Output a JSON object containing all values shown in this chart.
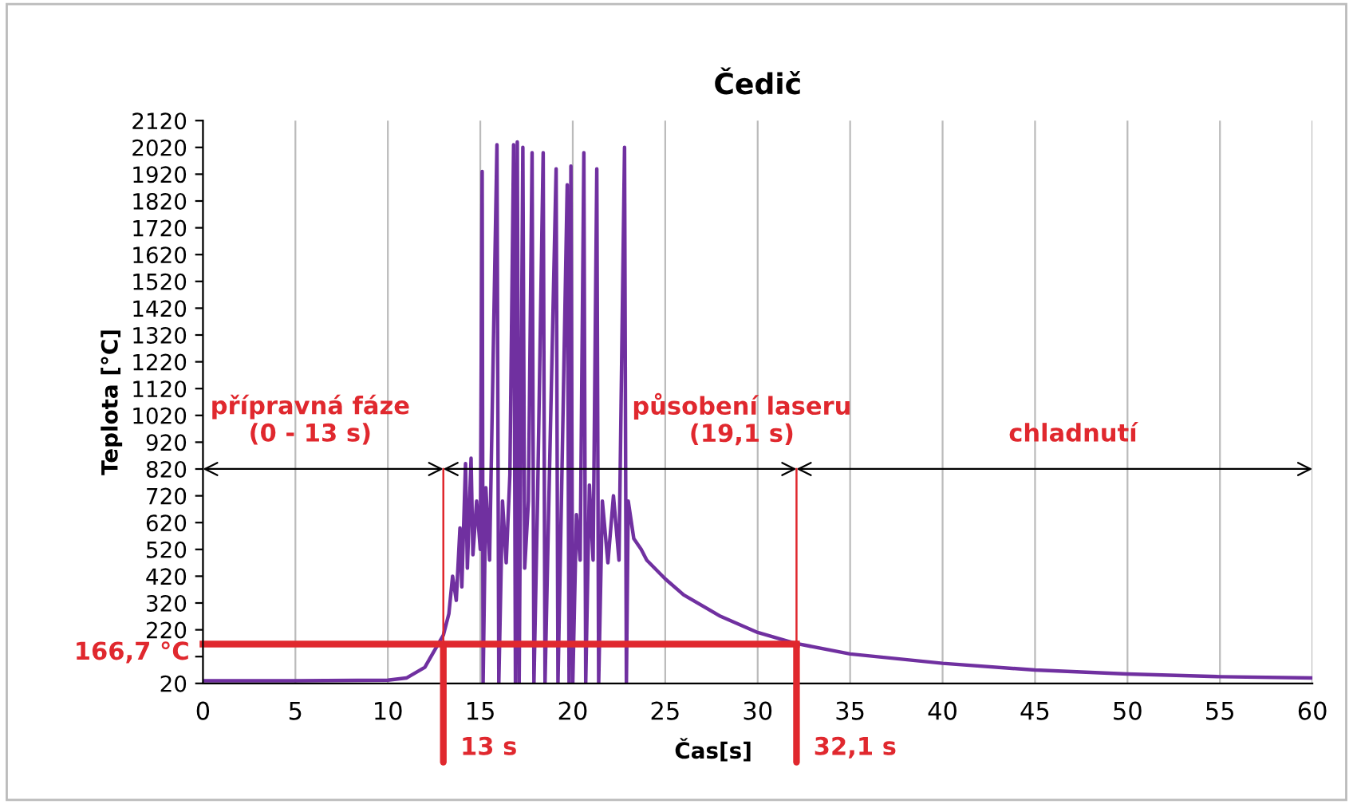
{
  "chart_data": {
    "type": "line",
    "title": "Čedič",
    "xlabel": "Čas[s]",
    "ylabel": "Teplota [°C]",
    "x": [
      0,
      5,
      10,
      11,
      12,
      12.5,
      13,
      13.3,
      13.5,
      13.7,
      13.9,
      14.0,
      14.2,
      14.3,
      14.5,
      14.6,
      14.8,
      15.0,
      15.1,
      15.15,
      15.3,
      15.5,
      15.9,
      16.0,
      16.2,
      16.4,
      16.6,
      16.8,
      16.9,
      17.0,
      17.1,
      17.3,
      17.4,
      17.6,
      17.8,
      17.9,
      18.1,
      18.4,
      18.5,
      18.7,
      19.1,
      19.2,
      19.4,
      19.7,
      19.8,
      19.9,
      20.0,
      20.2,
      20.4,
      20.6,
      20.7,
      20.9,
      21.1,
      21.3,
      21.4,
      21.6,
      21.9,
      22.2,
      22.5,
      22.8,
      22.9,
      23.0,
      23.3,
      23.7,
      24.0,
      25,
      26,
      28,
      30,
      32,
      35,
      40,
      45,
      50,
      55,
      60
    ],
    "series": [
      {
        "color": "#7030a0",
        "values": [
          30,
          30,
          32,
          40,
          80,
          140,
          200,
          280,
          420,
          330,
          600,
          380,
          840,
          450,
          860,
          500,
          700,
          520,
          1930,
          20,
          750,
          480,
          2030,
          20,
          700,
          470,
          800,
          2030,
          20,
          2040,
          20,
          2020,
          450,
          700,
          2000,
          20,
          720,
          2000,
          20,
          680,
          1940,
          20,
          750,
          1880,
          20,
          1950,
          20,
          650,
          480,
          2000,
          20,
          760,
          480,
          1940,
          20,
          700,
          470,
          720,
          480,
          2020,
          20,
          700,
          560,
          520,
          480,
          410,
          350,
          270,
          210,
          170,
          130,
          95,
          70,
          55,
          45,
          40
        ]
      }
    ],
    "xlim": [
      0,
      60
    ],
    "xticks": [
      0,
      5,
      10,
      15,
      20,
      25,
      30,
      35,
      40,
      45,
      50,
      55,
      60
    ],
    "ylim": [
      20,
      2120
    ],
    "yticks": [
      20,
      {
        "value": 120,
        "label": null
      },
      220,
      320,
      420,
      520,
      620,
      720,
      820,
      920,
      1020,
      1120,
      1220,
      1320,
      1420,
      1520,
      1620,
      1720,
      1820,
      1920,
      2020,
      2120
    ],
    "grid": "x",
    "marker": "none",
    "line_style": "solid",
    "ref_lines": [
      {
        "axis": "y",
        "value": 166.7,
        "label": "166,7 °C",
        "color": "#e0282e"
      },
      {
        "axis": "x",
        "value": 13,
        "label": "13 s",
        "color": "#e0282e"
      },
      {
        "axis": "x",
        "value": 32.1,
        "label": "32,1 s",
        "color": "#e0282e"
      }
    ],
    "annotations": [
      "přípravná fáze\n(0 - 13 s)",
      {
        "text": "působení laseru\n(19,1 s)",
        "x": 22.55,
        "y": 820
      },
      "chladnutí"
    ]
  }
}
